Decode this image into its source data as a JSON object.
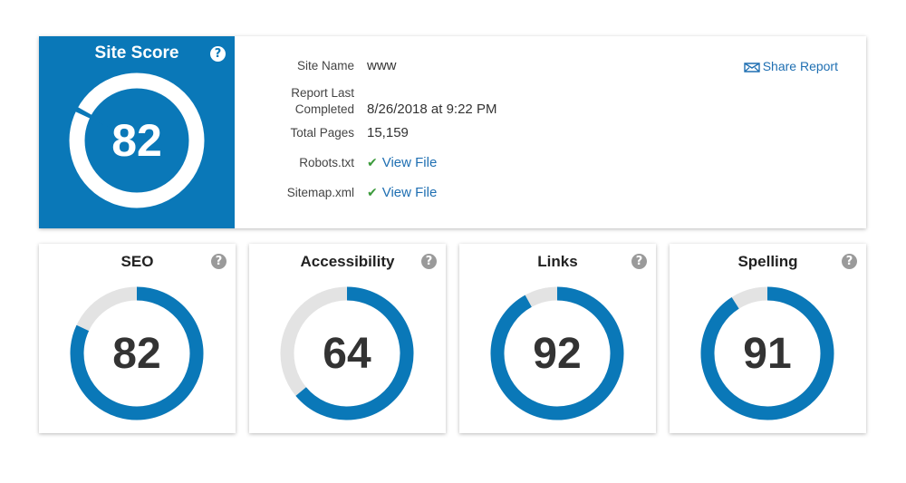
{
  "site_score": {
    "title": "Site Score",
    "score": 82,
    "score_label": "82",
    "help_glyph": "?"
  },
  "info": {
    "site_name_label": "Site Name",
    "site_name_value": "www",
    "report_label_line1": "Report Last",
    "report_label_line2": "Completed",
    "report_value": "8/26/2018 at 9:22 PM",
    "total_pages_label": "Total Pages",
    "total_pages_value": "15,159",
    "robots_label": "Robots.txt",
    "robots_link": "View File",
    "sitemap_label": "Sitemap.xml",
    "sitemap_link": "View File"
  },
  "share": {
    "label": "Share Report",
    "icon": "envelope-share-icon"
  },
  "categories": [
    {
      "title": "SEO",
      "score": 82,
      "score_label": "82"
    },
    {
      "title": "Accessibility",
      "score": 64,
      "score_label": "64"
    },
    {
      "title": "Links",
      "score": 92,
      "score_label": "92"
    },
    {
      "title": "Spelling",
      "score": 91,
      "score_label": "91"
    }
  ],
  "colors": {
    "brand_blue": "#0a78b8",
    "ring_track": "#e3e3e3",
    "check_green": "#3b9a3b",
    "link_blue": "#1f6fb2"
  }
}
